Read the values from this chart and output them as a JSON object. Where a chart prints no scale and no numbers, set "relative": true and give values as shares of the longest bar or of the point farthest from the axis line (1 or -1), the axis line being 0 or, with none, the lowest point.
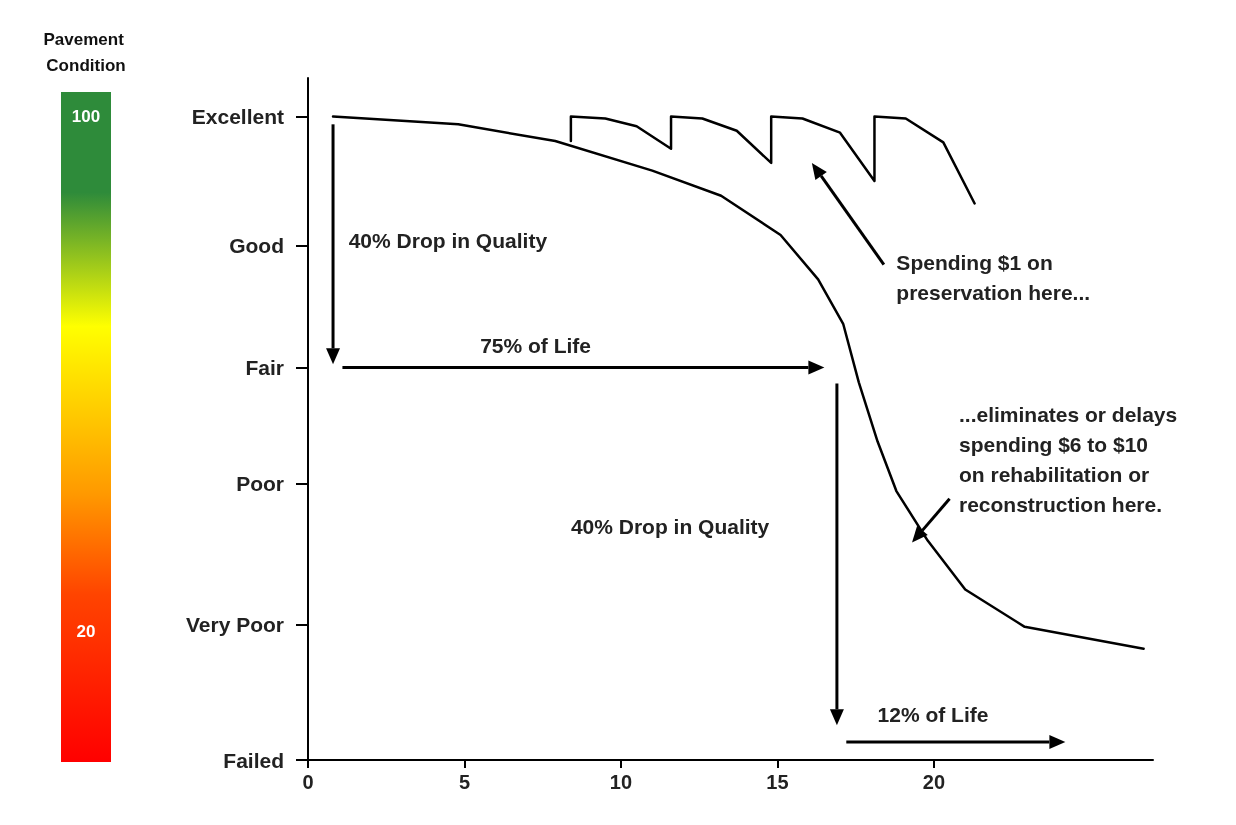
{
  "chart_data": {
    "type": "line",
    "relative": true,
    "clabel": "Pavement Condition",
    "clim": [
      0,
      100
    ],
    "cticks": [
      100,
      20
    ],
    "xlim": [
      0,
      27
    ],
    "xticks": [
      0,
      5,
      10,
      15,
      20
    ],
    "grid": false,
    "marker": "none",
    "line_style": "solid",
    "series": [
      {
        "color": "#000000",
        "x": [
          0.8,
          4.8,
          7.9,
          11.0,
          13.2,
          15.1,
          16.3,
          17.1,
          17.6,
          18.2,
          18.8,
          19.8,
          21.0,
          22.9,
          26.7
        ],
        "values": [
          1,
          0.988,
          0.962,
          0.916,
          0.877,
          0.816,
          0.747,
          0.678,
          0.587,
          0.495,
          0.418,
          0.341,
          0.265,
          0.207,
          0.173
        ]
      },
      {
        "color": "#000000",
        "x": [
          8.4,
          8.4,
          9.5,
          10.5,
          11.6,
          11.6,
          12.6,
          13.7,
          14.8,
          14.8,
          15.8,
          17.0,
          18.1,
          18.1,
          19.1,
          20.3,
          21.3
        ],
        "values": [
          0.962,
          1,
          0.997,
          0.985,
          0.95,
          1,
          0.997,
          0.978,
          0.928,
          1,
          0.997,
          0.975,
          0.9,
          1,
          0.997,
          0.96,
          0.865
        ]
      }
    ],
    "annotations": [
      "Excellent",
      "Good",
      "Fair",
      "Poor",
      "Very Poor",
      "Failed",
      "40% Drop in Quality",
      "75% of Life",
      "40% Drop in Quality",
      "12% of Life",
      "Spending $1 on\npreservation here...",
      "...eliminates or delays\nspending $6 to $10\non rehabilitation or\nreconstruction here."
    ]
  }
}
